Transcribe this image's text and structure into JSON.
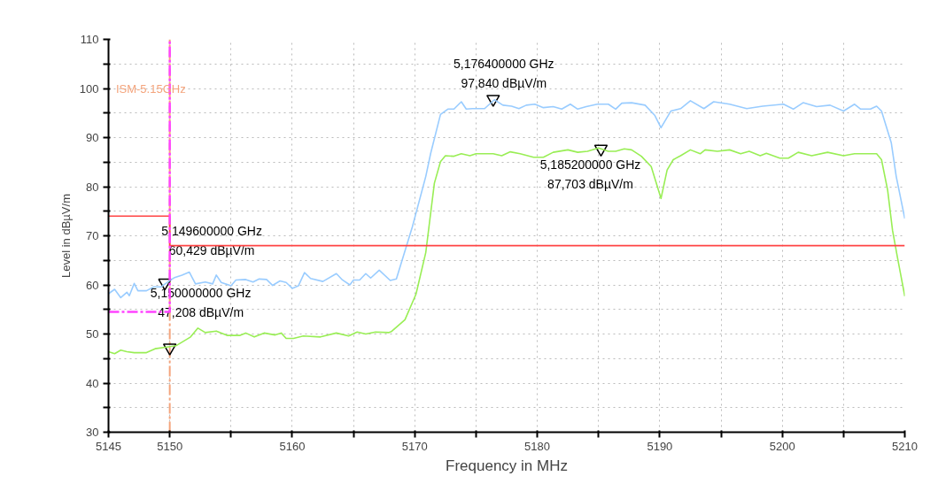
{
  "chart_data": {
    "type": "line",
    "xlabel": "Frequency in MHz",
    "ylabel": "Level in dBµV/m",
    "xlim": [
      5145,
      5210
    ],
    "ylim": [
      30,
      110
    ],
    "xticks": [
      5145,
      5150,
      {
        "value": 5155,
        "label": null
      },
      5160,
      {
        "value": 5165,
        "label": null
      },
      5170,
      {
        "value": 5175,
        "label": null
      },
      5180,
      {
        "value": 5185,
        "label": null
      },
      5190,
      {
        "value": 5195,
        "label": null
      },
      5200,
      {
        "value": 5205,
        "label": null
      },
      5210
    ],
    "yticks": [
      30,
      {
        "value": 35,
        "label": null
      },
      40,
      {
        "value": 45,
        "label": null
      },
      50,
      {
        "value": 55,
        "label": null
      },
      60,
      {
        "value": 65,
        "label": null
      },
      70,
      {
        "value": 75,
        "label": null
      },
      80,
      {
        "value": 85,
        "label": null
      },
      90,
      {
        "value": 95,
        "label": null
      },
      100,
      {
        "value": 105,
        "label": null
      },
      110
    ],
    "grid": true,
    "line_style": "solid",
    "marker": "none",
    "series": [
      {
        "color": "#99ccff",
        "x": [
          5145.0,
          5145.5,
          5146.0,
          5146.5,
          5146.7,
          5147.1,
          5147.4,
          5148.1,
          5148.7,
          5149.3,
          5149.9,
          5150.4,
          5151.0,
          5151.6,
          5152.1,
          5152.9,
          5153.5,
          5153.8,
          5154.2,
          5155.0,
          5155.4,
          5156.2,
          5156.8,
          5157.3,
          5157.9,
          5158.4,
          5159.0,
          5159.5,
          5160.0,
          5160.5,
          5161.0,
          5161.5,
          5162.5,
          5163.6,
          5164.1,
          5164.7,
          5165.0,
          5165.5,
          5166.0,
          5166.4,
          5167.1,
          5168.0,
          5168.5,
          5169.8,
          5170.9,
          5171.3,
          5172.1,
          5172.7,
          5173.2,
          5173.8,
          5174.2,
          5174.7,
          5175.7,
          5176.1,
          5176.5,
          5177.2,
          5177.9,
          5178.5,
          5179.1,
          5179.8,
          5180.5,
          5181.3,
          5182.0,
          5182.7,
          5183.3,
          5184.0,
          5184.9,
          5185.8,
          5186.4,
          5186.9,
          5187.7,
          5188.8,
          5189.6,
          5190.1,
          5190.9,
          5191.7,
          5192.5,
          5193.6,
          5194.4,
          5195.7,
          5197.1,
          5198.4,
          5200.1,
          5200.9,
          5201.7,
          5202.8,
          5203.9,
          5205.0,
          5205.9,
          5206.4,
          5207.2,
          5207.7,
          5208.1,
          5208.9,
          5209.3,
          5210.0
        ],
        "values": [
          58.2,
          59.1,
          57.4,
          58.5,
          57.8,
          60.3,
          58.8,
          58.8,
          59.6,
          59.6,
          60.7,
          61.5,
          62.0,
          62.6,
          60.2,
          60.6,
          60.2,
          62.0,
          60.5,
          59.8,
          61.0,
          61.1,
          60.6,
          61.2,
          61.1,
          59.9,
          60.8,
          60.5,
          59.3,
          59.8,
          62.5,
          61.3,
          60.7,
          62.3,
          61.0,
          60.0,
          61.0,
          61.0,
          62.3,
          61.4,
          63.0,
          60.9,
          61.2,
          71.8,
          82.1,
          86.8,
          94.7,
          95.8,
          95.8,
          97.3,
          95.8,
          95.9,
          95.9,
          96.8,
          97.7,
          96.6,
          96.4,
          95.9,
          96.6,
          96.8,
          96.1,
          96.3,
          95.8,
          96.8,
          95.8,
          96.3,
          96.8,
          96.8,
          95.8,
          97.0,
          97.1,
          96.6,
          94.5,
          92.0,
          95.4,
          95.9,
          97.5,
          95.9,
          97.3,
          96.8,
          95.9,
          96.4,
          96.8,
          95.8,
          97.1,
          96.3,
          96.6,
          95.4,
          96.8,
          95.8,
          95.8,
          96.4,
          95.4,
          88.9,
          82.1,
          73.5
        ]
      },
      {
        "color": "#99ee55",
        "x": [
          5145.0,
          5145.5,
          5146.0,
          5146.5,
          5147.1,
          5148.1,
          5148.8,
          5149.9,
          5150.5,
          5151.1,
          5151.7,
          5152.3,
          5152.9,
          5153.8,
          5154.7,
          5155.7,
          5156.2,
          5156.9,
          5157.7,
          5158.6,
          5159.1,
          5159.5,
          5160.1,
          5160.9,
          5162.3,
          5163.6,
          5164.6,
          5165.3,
          5166.0,
          5166.8,
          5167.9,
          5168.1,
          5169.2,
          5170.1,
          5170.9,
          5171.6,
          5172.1,
          5172.5,
          5173.2,
          5173.8,
          5174.5,
          5175.0,
          5176.4,
          5177.1,
          5177.8,
          5178.6,
          5179.7,
          5180.5,
          5181.3,
          5182.5,
          5183.3,
          5184.1,
          5185.0,
          5185.8,
          5186.4,
          5187.1,
          5187.7,
          5188.5,
          5189.3,
          5190.1,
          5190.6,
          5191.1,
          5191.7,
          5192.5,
          5193.3,
          5193.7,
          5194.7,
          5195.7,
          5196.6,
          5197.3,
          5198.2,
          5198.7,
          5199.8,
          5200.5,
          5201.3,
          5202.4,
          5203.7,
          5205.0,
          5205.9,
          5207.2,
          5207.7,
          5208.1,
          5208.6,
          5209.0,
          5209.4,
          5210.0
        ],
        "values": [
          46.4,
          46.0,
          46.7,
          46.4,
          46.2,
          46.2,
          47.0,
          47.4,
          47.6,
          48.5,
          49.4,
          51.2,
          50.3,
          50.6,
          49.7,
          49.7,
          50.2,
          49.4,
          50.2,
          49.8,
          50.2,
          49.1,
          49.1,
          49.6,
          49.4,
          50.2,
          49.6,
          50.4,
          50.0,
          50.4,
          50.3,
          50.5,
          52.9,
          58.1,
          66.6,
          80.7,
          85.1,
          86.3,
          86.2,
          86.7,
          86.3,
          86.7,
          86.7,
          86.3,
          87.1,
          86.7,
          86.0,
          86.0,
          87.0,
          87.5,
          87.0,
          87.2,
          87.9,
          87.2,
          87.2,
          87.7,
          87.5,
          86.2,
          84.1,
          77.6,
          83.4,
          85.5,
          86.3,
          87.5,
          86.7,
          87.5,
          87.2,
          87.5,
          86.7,
          87.2,
          86.3,
          86.8,
          85.8,
          85.8,
          87.0,
          86.3,
          87.0,
          86.3,
          86.7,
          86.7,
          86.7,
          85.5,
          79.3,
          71.1,
          65.6,
          57.7
        ]
      },
      {
        "color": "#ff4444",
        "x": [
          5145,
          5150,
          5150,
          5210
        ],
        "values": [
          74,
          74,
          68,
          68
        ]
      },
      {
        "color": "#ff44ff",
        "line_style": "dashed",
        "x": [
          5145,
          5150,
          5150
        ],
        "values": [
          54.5,
          54.5,
          110
        ]
      }
    ],
    "ref_lines": [
      {
        "axis": "x",
        "value": 5150,
        "label": "ISM-5.15GHz",
        "color": "#f4a47c",
        "line_style": "dashed"
      }
    ],
    "annotations": [
      {
        "text": "5,149600000 GHz\n60,429 dBµV/m",
        "x": 5149.6,
        "y": 60.429
      },
      {
        "text": "5,150000000 GHz\n47,208 dBµV/m",
        "x": 5150,
        "y": 47.208
      },
      {
        "text": "5,176400000 GHz\n97,840 dBµV/m",
        "x": 5176.4,
        "y": 97.84
      },
      {
        "text": "5,185200000 GHz\n87,703 dBµV/m",
        "x": 5185.2,
        "y": 87.703
      }
    ]
  }
}
